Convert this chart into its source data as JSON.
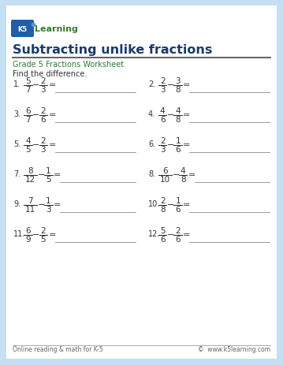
{
  "title": "Subtracting unlike fractions",
  "subtitle": "Grade 5 Fractions Worksheet",
  "instruction": "Find the difference.",
  "bg_color": "#c5dff5",
  "inner_bg": "#ffffff",
  "title_color": "#1a3a6b",
  "subtitle_color": "#2e7d32",
  "text_color": "#333333",
  "footer_left": "Online reading & math for K-5",
  "footer_right": "©  www.k5learning.com",
  "problems": [
    {
      "num": 1,
      "n1": 5,
      "d1": 7,
      "n2": 2,
      "d2": 3
    },
    {
      "num": 2,
      "n1": 2,
      "d1": 3,
      "n2": 3,
      "d2": 8
    },
    {
      "num": 3,
      "n1": 6,
      "d1": 7,
      "n2": 2,
      "d2": 6
    },
    {
      "num": 4,
      "n1": 4,
      "d1": 6,
      "n2": 4,
      "d2": 8
    },
    {
      "num": 5,
      "n1": 4,
      "d1": 5,
      "n2": 2,
      "d2": 3
    },
    {
      "num": 6,
      "n1": 2,
      "d1": 3,
      "n2": 1,
      "d2": 6
    },
    {
      "num": 7,
      "n1": 8,
      "d1": 12,
      "n2": 1,
      "d2": 5
    },
    {
      "num": 8,
      "n1": 6,
      "d1": 10,
      "n2": 4,
      "d2": 8
    },
    {
      "num": 9,
      "n1": 7,
      "d1": 11,
      "n2": 1,
      "d2": 3
    },
    {
      "num": 10,
      "n1": 2,
      "d1": 8,
      "n2": 1,
      "d2": 6
    },
    {
      "num": 11,
      "n1": 6,
      "d1": 9,
      "n2": 2,
      "d2": 5
    },
    {
      "num": 12,
      "n1": 5,
      "d1": 6,
      "n2": 2,
      "d2": 6
    }
  ]
}
